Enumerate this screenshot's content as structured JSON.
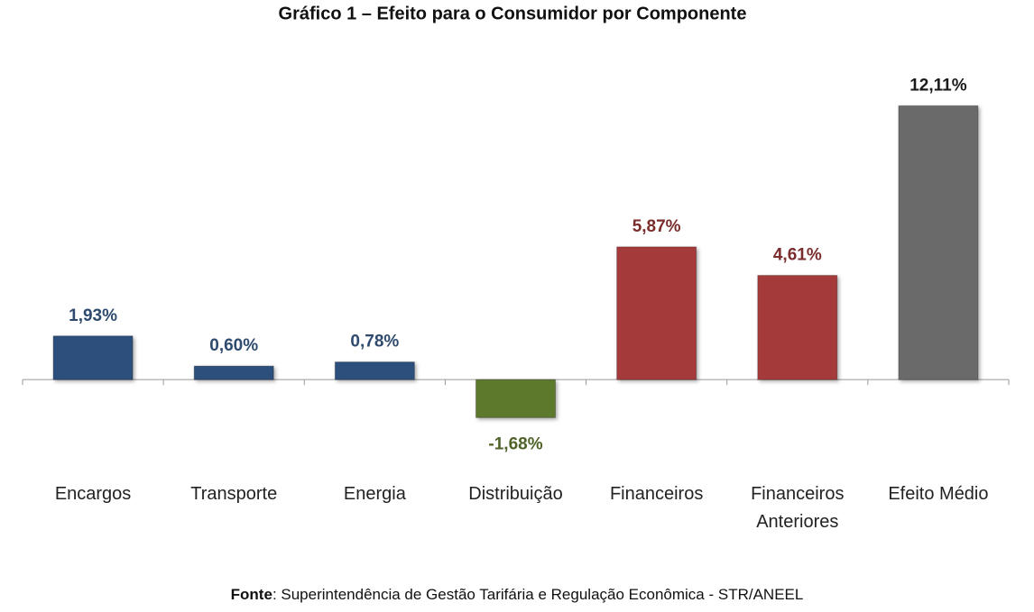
{
  "chart_data": {
    "type": "bar",
    "title": "Gráfico 1 – Efeito para o Consumidor por Componente",
    "categories": [
      "Encargos",
      "Transporte",
      "Energia",
      "Distribuição",
      "Financeiros",
      "Financeiros Anteriores",
      "Efeito Médio"
    ],
    "values": [
      1.93,
      0.6,
      0.78,
      -1.68,
      5.87,
      4.61,
      12.11
    ],
    "value_labels": [
      "1,93%",
      "0,60%",
      "0,78%",
      "-1,68%",
      "5,87%",
      "4,61%",
      "12,11%"
    ],
    "colors": [
      "#2c4f7c",
      "#2c4f7c",
      "#2c4f7c",
      "#5d7a2c",
      "#a53a3a",
      "#a53a3a",
      "#6a6a6a"
    ],
    "label_colors": [
      "#2e4a6e",
      "#2e4a6e",
      "#2e4a6e",
      "#4f6228",
      "#7b2c2c",
      "#7b2c2c",
      "#1a1a1a"
    ],
    "ylim": [
      -3.5,
      13
    ],
    "source_label": "Fonte",
    "source": ": Superintendência de Gestão Tarifária e Regulação Econômica - STR/ANEEL"
  }
}
